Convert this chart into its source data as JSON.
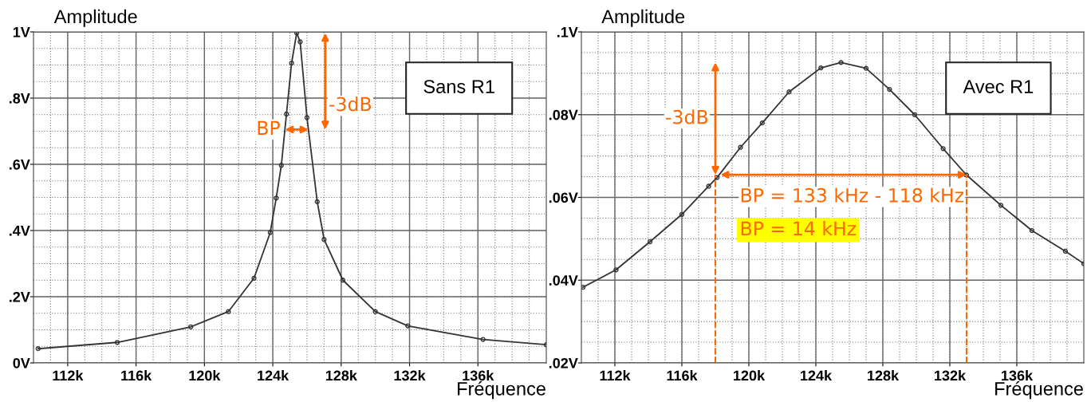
{
  "chart_data": [
    {
      "type": "line",
      "xlabel": "Fréquence",
      "ylabel": "Amplitude",
      "marker": "circle",
      "line_style": "solid",
      "grid": true,
      "legend": false,
      "x": [
        110270,
        114900,
        119200,
        121400,
        122900,
        123850,
        124200,
        124500,
        124800,
        125100,
        125400,
        125600,
        126000,
        126600,
        127000,
        128100,
        130000,
        131900,
        136300,
        140000
      ],
      "series": [
        {
          "color": "#333333",
          "values": [
            0.043,
            0.062,
            0.109,
            0.155,
            0.256,
            0.394,
            0.498,
            0.597,
            0.752,
            0.906,
            0.997,
            0.97,
            0.741,
            0.487,
            0.373,
            0.25,
            0.155,
            0.112,
            0.071,
            0.055
          ]
        }
      ],
      "xlim": [
        110000,
        140000
      ],
      "xticks": [
        {
          "value": 112000,
          "label": "112k"
        },
        {
          "value": 116000,
          "label": "116k"
        },
        {
          "value": 120000,
          "label": "120k"
        },
        {
          "value": 124000,
          "label": "124k"
        },
        {
          "value": 128000,
          "label": "128k"
        },
        {
          "value": 132000,
          "label": "132k"
        },
        {
          "value": 136000,
          "label": "136k"
        }
      ],
      "ylim": [
        0,
        1
      ],
      "yticks": [
        {
          "value": 0,
          "label": "0V"
        },
        {
          "value": 0.2,
          "label": ".2V"
        },
        {
          "value": 0.4,
          "label": ".4V"
        },
        {
          "value": 0.6,
          "label": ".6V"
        },
        {
          "value": 0.8,
          "label": ".8V"
        },
        {
          "value": 1,
          "label": "1V"
        }
      ],
      "annotations": [
        "Sans R1",
        "-3dB",
        "BP"
      ]
    },
    {
      "type": "line",
      "xlabel": "Fréquence",
      "ylabel": "Amplitude",
      "marker": "circle",
      "line_style": "solid",
      "grid": true,
      "legend": false,
      "x": [
        110100,
        112070,
        114100,
        116000,
        117600,
        118100,
        119500,
        120800,
        122400,
        124300,
        125500,
        127000,
        128400,
        129900,
        131600,
        133000,
        135050,
        136900,
        138900,
        140000
      ],
      "series": [
        {
          "color": "#333333",
          "values": [
            0.0383,
            0.0425,
            0.0493,
            0.0559,
            0.0627,
            0.0648,
            0.0721,
            0.078,
            0.0855,
            0.0913,
            0.0926,
            0.0912,
            0.0861,
            0.08,
            0.0718,
            0.0654,
            0.0581,
            0.052,
            0.047,
            0.044
          ]
        }
      ],
      "xlim": [
        110000,
        140000
      ],
      "xticks": [
        {
          "value": 112000,
          "label": "112k"
        },
        {
          "value": 116000,
          "label": "116k"
        },
        {
          "value": 120000,
          "label": "120k"
        },
        {
          "value": 124000,
          "label": "124k"
        },
        {
          "value": 128000,
          "label": "128k"
        },
        {
          "value": 132000,
          "label": "132k"
        },
        {
          "value": 136000,
          "label": "136k"
        }
      ],
      "ylim": [
        0.02,
        0.1
      ],
      "yticks": [
        {
          "value": 0.02,
          "label": ".02V"
        },
        {
          "value": 0.04,
          "label": ".04V"
        },
        {
          "value": 0.06,
          "label": ".06V"
        },
        {
          "value": 0.08,
          "label": ".08V"
        },
        {
          "value": 0.1,
          "label": ".1V"
        }
      ],
      "ref_lines": [
        {
          "axis": "x",
          "value": 118000,
          "color": "#ff6600",
          "line_style": "dashed"
        },
        {
          "axis": "x",
          "value": 133000,
          "color": "#ff6600",
          "line_style": "dashed"
        }
      ],
      "annotations": [
        "Avec R1",
        "-3dB",
        "BP = 133 kHz - 118 kHz",
        "BP = 14 kHz"
      ]
    }
  ]
}
